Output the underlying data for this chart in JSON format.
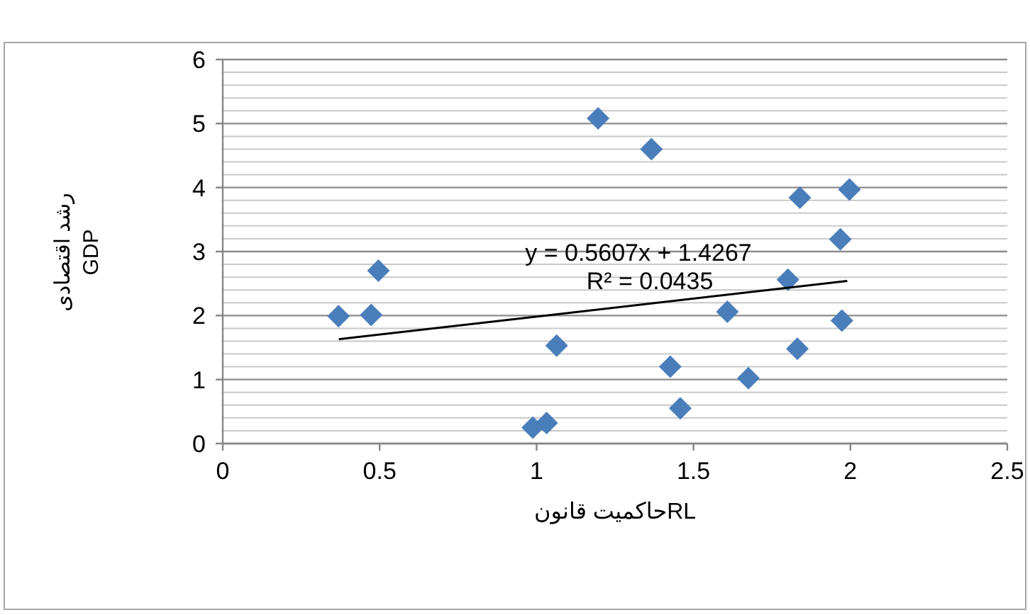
{
  "chart_data": {
    "type": "scatter",
    "xlabel": "حاکمیت قانونRL",
    "ylabel": "رشد اقتصادی GDP",
    "xlim": [
      0,
      2.5
    ],
    "xticks": [
      0,
      0.5,
      1,
      1.5,
      2,
      2.5
    ],
    "ylim": [
      0,
      6
    ],
    "yticks": [
      0,
      1,
      2,
      3,
      4,
      5,
      6
    ],
    "grid": "y",
    "annotations": [
      "y = 0.5607x + 1.4267",
      "R² = 0.0435"
    ],
    "series": [
      {
        "color": "#4a7ebb",
        "marker": "diamond",
        "x": [
          0.369,
          0.473,
          0.496,
          0.988,
          1.032,
          1.064,
          1.196,
          1.366,
          1.426,
          1.458,
          1.608,
          1.675,
          1.801,
          1.831,
          1.839,
          1.968,
          1.973,
          1.997
        ],
        "values": [
          1.99,
          2.01,
          2.7,
          0.25,
          0.32,
          1.53,
          5.08,
          4.6,
          1.2,
          0.55,
          2.06,
          1.02,
          2.56,
          1.48,
          3.84,
          3.19,
          1.92,
          3.97
        ]
      },
      {
        "type": "line",
        "color": "#000000",
        "x": [
          0.37,
          1.99
        ],
        "values": [
          1.63,
          2.54
        ]
      }
    ]
  }
}
